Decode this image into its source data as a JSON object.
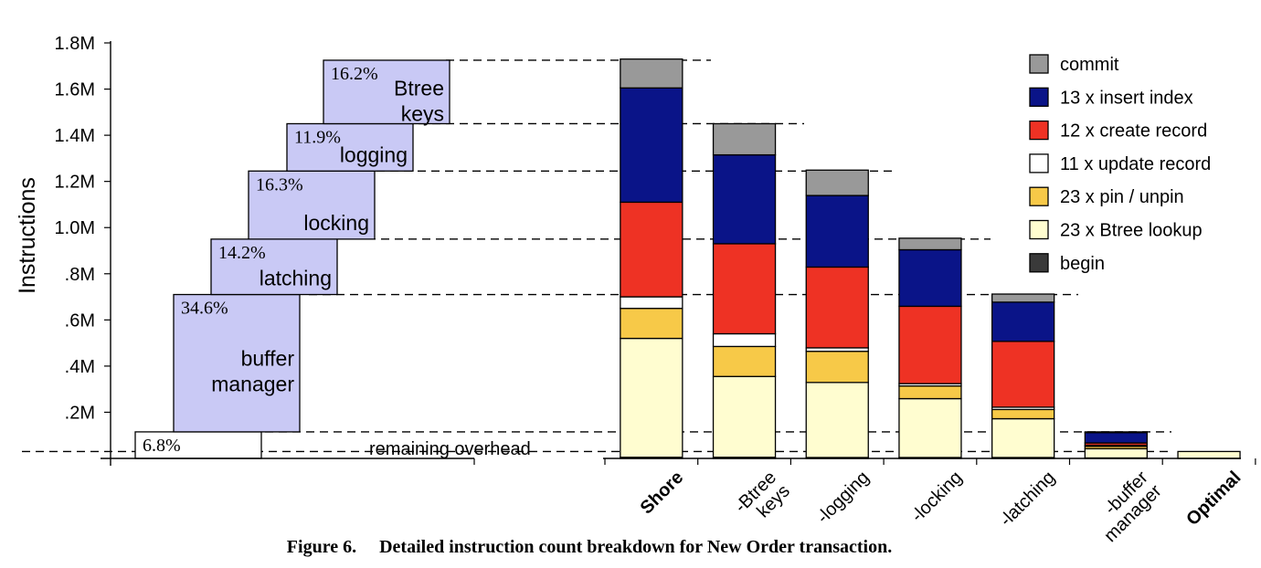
{
  "chart_data": {
    "type": "bar",
    "stacked": true,
    "ylabel": "Instructions",
    "ylim": [
      0,
      1800000
    ],
    "y_ticks": [
      {
        "value": 200000,
        "label": ".2M"
      },
      {
        "value": 400000,
        "label": ".4M"
      },
      {
        "value": 600000,
        "label": ".6M"
      },
      {
        "value": 800000,
        "label": ".8M"
      },
      {
        "value": 1000000,
        "label": "1.0M"
      },
      {
        "value": 1200000,
        "label": "1.2M"
      },
      {
        "value": 1400000,
        "label": "1.4M"
      },
      {
        "value": 1600000,
        "label": "1.6M"
      },
      {
        "value": 1800000,
        "label": "1.8M"
      }
    ],
    "categories": [
      {
        "label": [
          "Shore"
        ],
        "bold": true
      },
      {
        "label": [
          "-Btree",
          "keys"
        ],
        "bold": false
      },
      {
        "label": [
          "-logging"
        ],
        "bold": false
      },
      {
        "label": [
          "-locking"
        ],
        "bold": false
      },
      {
        "label": [
          "-latching"
        ],
        "bold": false
      },
      {
        "label": [
          "-buffer",
          "manager"
        ],
        "bold": false
      },
      {
        "label": [
          "Optimal"
        ],
        "bold": true
      }
    ],
    "series": [
      {
        "name": "begin",
        "color": "#3a3a3a",
        "values": [
          5000,
          5000,
          4000,
          4000,
          4000,
          2000,
          0
        ]
      },
      {
        "name": "23 x Btree lookup",
        "color": "#fffdd0",
        "values": [
          515000,
          350000,
          325000,
          255000,
          168000,
          40000,
          30000
        ]
      },
      {
        "name": "23 x pin / unpin",
        "color": "#f7c948",
        "values": [
          130000,
          130000,
          135000,
          55000,
          40000,
          10000,
          0
        ]
      },
      {
        "name": "11 x update record",
        "color": "#ffffff",
        "values": [
          50000,
          55000,
          15000,
          10000,
          10000,
          5000,
          0
        ]
      },
      {
        "name": "12 x create record",
        "color": "#ee3224",
        "values": [
          410000,
          390000,
          350000,
          335000,
          285000,
          10000,
          0
        ]
      },
      {
        "name": "13 x insert index",
        "color": "#0a1488",
        "values": [
          495000,
          385000,
          310000,
          245000,
          170000,
          45000,
          0
        ]
      },
      {
        "name": "commit",
        "color": "#999999",
        "values": [
          125000,
          135000,
          110000,
          50000,
          35000,
          3000,
          0
        ]
      }
    ],
    "legend_order": [
      "commit",
      "13 x insert index",
      "12 x create record",
      "11 x update record",
      "23 x pin / unpin",
      "23 x Btree lookup",
      "begin"
    ],
    "legend_position": "top-right",
    "dashed_levels": [
      1725000,
      1450000,
      1245000,
      950000,
      710000,
      115000,
      30000
    ],
    "waterfall": [
      {
        "percent": "6.8%",
        "label": [
          "remaining overhead"
        ],
        "bottom": 0,
        "top": 115000
      },
      {
        "percent": "34.6%",
        "label": [
          "buffer",
          "manager"
        ],
        "bottom": 115000,
        "top": 710000
      },
      {
        "percent": "14.2%",
        "label": [
          "latching"
        ],
        "bottom": 710000,
        "top": 950000
      },
      {
        "percent": "16.3%",
        "label": [
          "locking"
        ],
        "bottom": 950000,
        "top": 1245000
      },
      {
        "percent": "11.9%",
        "label": [
          "logging"
        ],
        "bottom": 1245000,
        "top": 1450000
      },
      {
        "percent": "16.2%",
        "label": [
          "Btree",
          "keys"
        ],
        "bottom": 1450000,
        "top": 1725000
      }
    ]
  },
  "caption": {
    "number": "Figure 6.",
    "text": "Detailed instruction count breakdown for New Order transaction."
  }
}
